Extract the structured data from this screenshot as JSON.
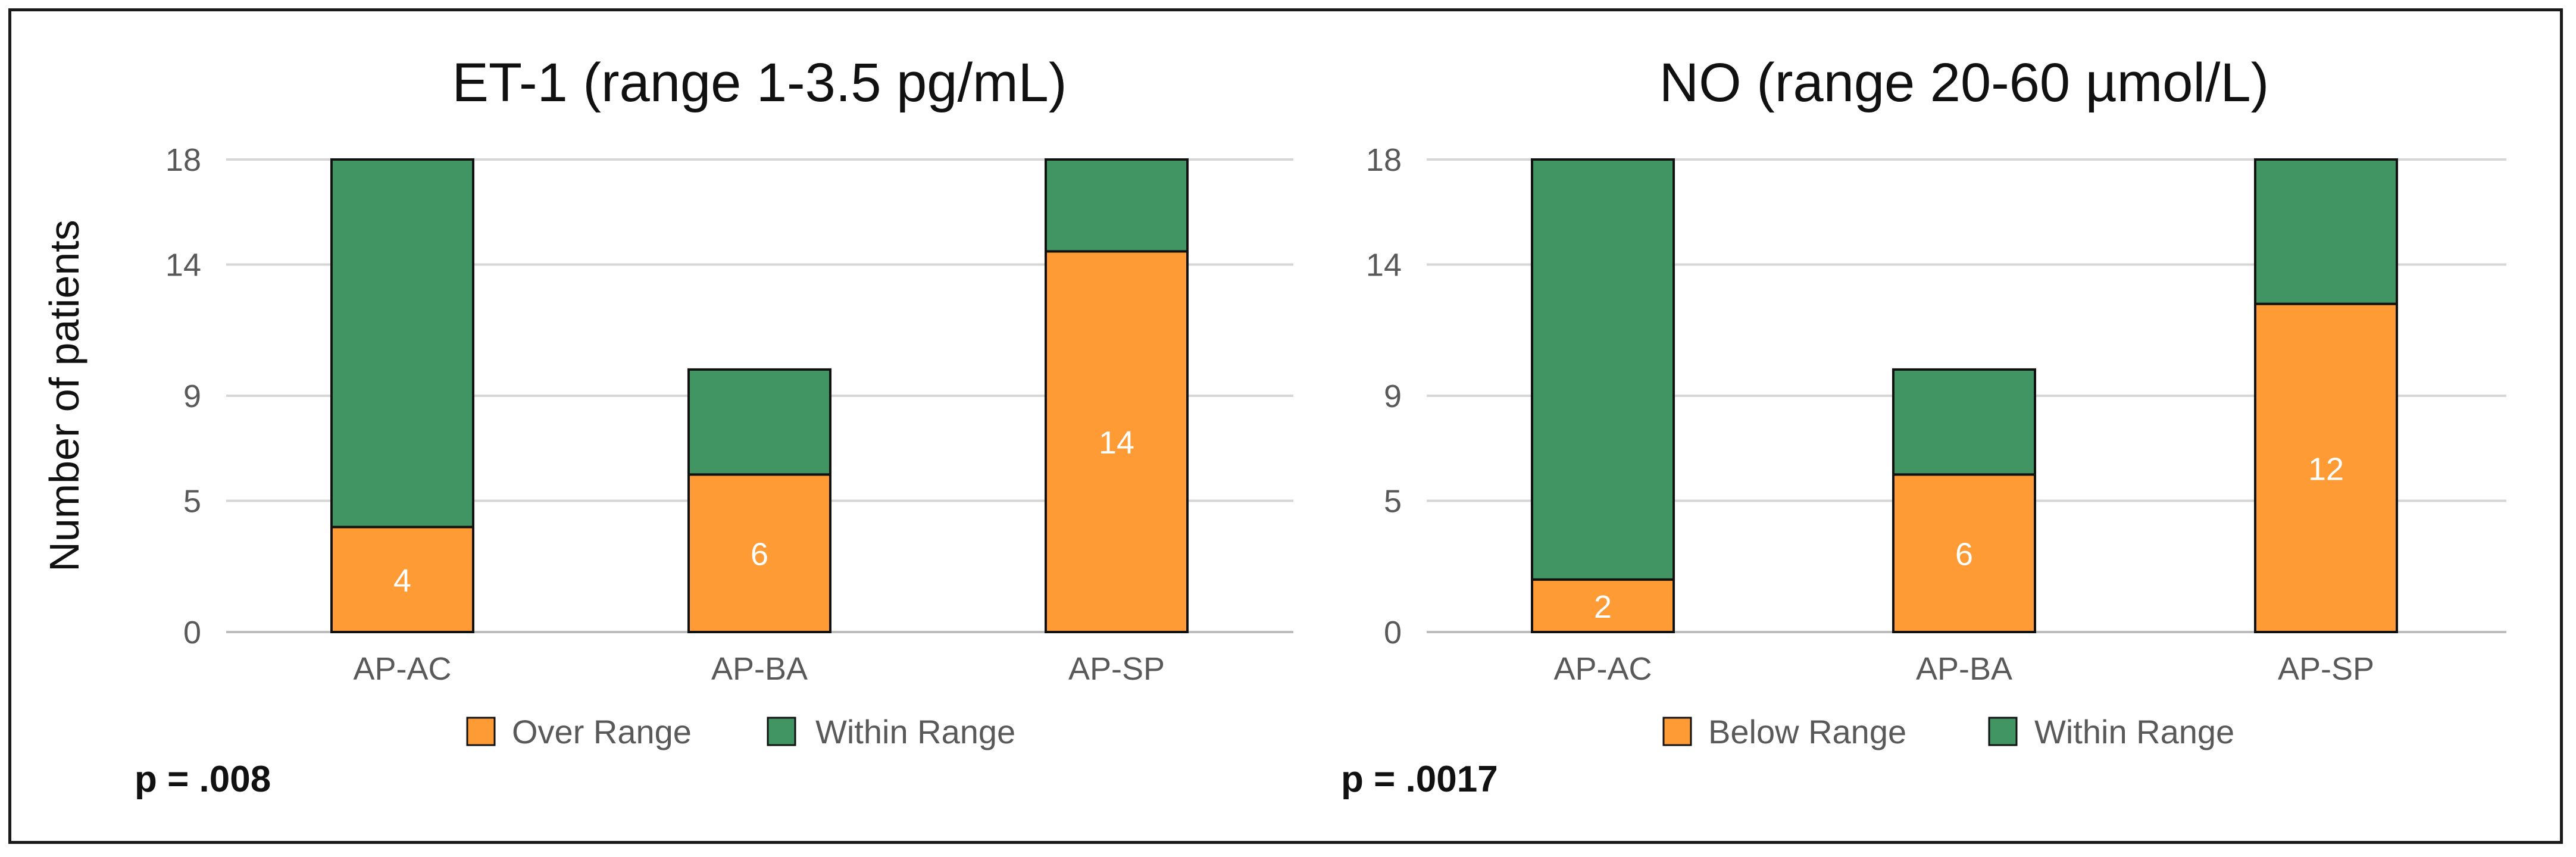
{
  "chart_data": [
    {
      "type": "bar",
      "stacked": true,
      "title": "ET-1 (range 1-3.5 pg/mL)",
      "ylabel": "Number of patients",
      "xlabel": "",
      "ylim": [
        0,
        18
      ],
      "yticks": [
        "0",
        "5",
        "9",
        "14",
        "18"
      ],
      "categories": [
        "AP-AC",
        "AP-BA",
        "AP-SP"
      ],
      "series": [
        {
          "name": "Over Range",
          "color": "#FF9B34",
          "values": [
            4,
            6,
            14.5
          ],
          "labels": [
            "4",
            "6",
            "14"
          ]
        },
        {
          "name": "Within Range",
          "color": "#419562",
          "values": [
            14,
            4,
            3.5
          ]
        }
      ],
      "legend": "bottom-center",
      "grid": true,
      "annotation": "p = .008"
    },
    {
      "type": "bar",
      "stacked": true,
      "title": "NO (range 20-60 µmol/L)",
      "ylabel": "",
      "xlabel": "",
      "ylim": [
        0,
        18
      ],
      "yticks": [
        "0",
        "5",
        "9",
        "14",
        "18"
      ],
      "categories": [
        "AP-AC",
        "AP-BA",
        "AP-SP"
      ],
      "series": [
        {
          "name": "Below Range",
          "color": "#FF9B34",
          "values": [
            2,
            6,
            12.5
          ],
          "labels": [
            "2",
            "6",
            "12"
          ]
        },
        {
          "name": "Within  Range",
          "color": "#419562",
          "values": [
            16,
            4,
            5.5
          ]
        }
      ],
      "legend": "bottom-center",
      "grid": true,
      "annotation": "p = .0017"
    }
  ]
}
